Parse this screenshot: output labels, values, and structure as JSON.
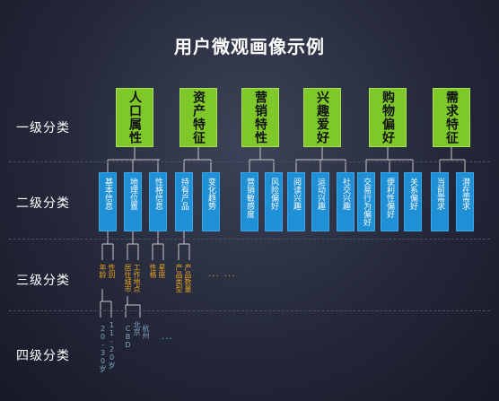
{
  "title": "用户微观画像示例",
  "levels": {
    "l1": "一级分类",
    "l2": "二级分类",
    "l3": "三级分类",
    "l4": "四级分类"
  },
  "categories": [
    {
      "label": "人口属性",
      "children": [
        "基本信息",
        "地理位置",
        "性格信息"
      ]
    },
    {
      "label": "资产特征",
      "children": [
        "持有产品",
        "变化趋势"
      ]
    },
    {
      "label": "营销特性",
      "children": [
        "营销敏感度",
        "风险偏好"
      ]
    },
    {
      "label": "兴趣爱好",
      "children": [
        "阅读兴趣",
        "运动兴趣",
        "社交兴趣"
      ]
    },
    {
      "label": "购物偏好",
      "children": [
        "交易行为偏好",
        "便利性偏好",
        "关系偏好"
      ]
    },
    {
      "label": "需求特征",
      "children": [
        "当前需求",
        "潜在需求"
      ]
    }
  ],
  "level3": {
    "basic_a": "性别",
    "basic_b": "年龄",
    "geo_a": "工作地点",
    "geo_b": "居住城市",
    "personality_a": "星座",
    "personality_b": "性格",
    "product_a": "产品数量",
    "product_b": "产品类型",
    "dots_a": "...",
    "dots_b": "..."
  },
  "level4": {
    "age_a": "11-20岁",
    "age_b": "20-30岁",
    "city_a": "北京",
    "city_b": "CBD",
    "city_c": "杭州",
    "dots": "..."
  },
  "colors": {
    "level1": "#7ec82a",
    "level2": "#1f8fd6",
    "level3_text": "#e8a020",
    "level4_text": "#7fa8c4"
  }
}
